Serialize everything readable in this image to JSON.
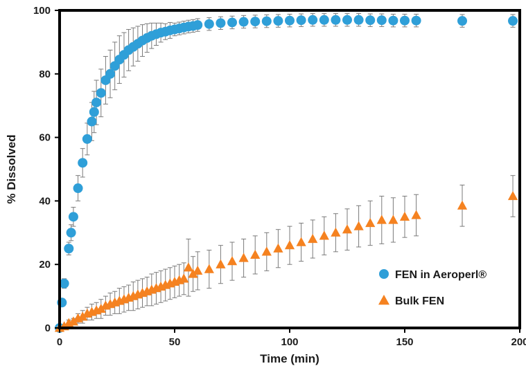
{
  "chart_data": {
    "type": "scatter",
    "xlabel": "Time (min)",
    "ylabel": "% Dissolved",
    "xlim": [
      0,
      200
    ],
    "ylim": [
      0,
      100
    ],
    "xticks": [
      0,
      50,
      100,
      150,
      200
    ],
    "yticks": [
      0,
      20,
      40,
      60,
      80,
      100
    ],
    "grid": false,
    "legend_position": "bottom-right",
    "series": [
      {
        "name": "FEN in Aeroperl®",
        "marker": "circle",
        "color": "#2f9fd8",
        "x": [
          0,
          1,
          2,
          4,
          5,
          6,
          8,
          10,
          12,
          14,
          15,
          16,
          18,
          20,
          22,
          24,
          26,
          28,
          30,
          32,
          34,
          36,
          38,
          40,
          42,
          44,
          46,
          48,
          50,
          52,
          54,
          56,
          58,
          60,
          65,
          70,
          75,
          80,
          85,
          90,
          95,
          100,
          105,
          110,
          115,
          120,
          125,
          130,
          135,
          140,
          145,
          150,
          155,
          175,
          197
        ],
        "y": [
          0,
          8,
          14,
          25,
          30,
          35,
          44,
          52,
          59.5,
          65,
          68,
          71,
          74,
          78,
          80,
          82.5,
          84.5,
          86,
          87.5,
          88.5,
          89.5,
          90.5,
          91.3,
          92,
          92.5,
          93,
          93.3,
          93.7,
          94,
          94.3,
          94.6,
          94.9,
          95.1,
          95.4,
          95.7,
          96,
          96.2,
          96.4,
          96.5,
          96.6,
          96.7,
          96.8,
          96.9,
          97,
          97,
          97,
          97,
          97,
          96.9,
          96.9,
          96.8,
          96.8,
          96.8,
          96.7,
          96.7
        ],
        "error": [
          0,
          1,
          1.5,
          2,
          2.5,
          3,
          4,
          4.5,
          5,
          6,
          6.5,
          7,
          7.5,
          7.5,
          7.5,
          7.5,
          7.5,
          7,
          6.5,
          6,
          5.5,
          5,
          4.5,
          4,
          3.5,
          3,
          2.5,
          2.5,
          2,
          2,
          2,
          2,
          2,
          2,
          2,
          2,
          2,
          2,
          2,
          2,
          2,
          2,
          2,
          2,
          2,
          2,
          2,
          2,
          2,
          2,
          2,
          2,
          2,
          2,
          2
        ]
      },
      {
        "name": "Bulk FEN",
        "marker": "triangle",
        "color": "#f58220",
        "x": [
          0,
          2,
          4,
          6,
          8,
          10,
          12,
          14,
          16,
          18,
          20,
          22,
          24,
          26,
          28,
          30,
          32,
          34,
          36,
          38,
          40,
          42,
          44,
          46,
          48,
          50,
          52,
          54,
          56,
          58,
          60,
          65,
          70,
          75,
          80,
          85,
          90,
          95,
          100,
          105,
          110,
          115,
          120,
          125,
          130,
          135,
          140,
          145,
          150,
          155,
          175,
          197
        ],
        "y": [
          0,
          0.5,
          1.5,
          2,
          3,
          3.5,
          4.5,
          5,
          5.5,
          6,
          7,
          7.5,
          8,
          8.5,
          9,
          9.5,
          10,
          10.5,
          11,
          11.5,
          12,
          12.5,
          13,
          13.5,
          14,
          14.5,
          15,
          15.5,
          19,
          17,
          18,
          18.5,
          20,
          21,
          22,
          23,
          24,
          25,
          26,
          27,
          28,
          29,
          30,
          31,
          32,
          33,
          34,
          34,
          35,
          35.5,
          38.5,
          41.5
        ],
        "error": [
          0,
          0.5,
          1,
          1,
          1.5,
          2,
          2,
          2.5,
          2.5,
          3,
          3,
          3.5,
          3.5,
          4,
          4,
          4,
          4.5,
          4.5,
          4.5,
          4.5,
          5,
          5,
          5,
          5,
          5,
          5,
          5,
          5,
          9,
          5.5,
          6,
          6,
          6,
          6,
          6,
          6,
          6,
          6,
          6,
          6,
          6,
          6,
          6,
          6.5,
          6.5,
          7,
          7.5,
          7,
          6.5,
          6.5,
          6.5,
          6.5
        ]
      }
    ]
  }
}
